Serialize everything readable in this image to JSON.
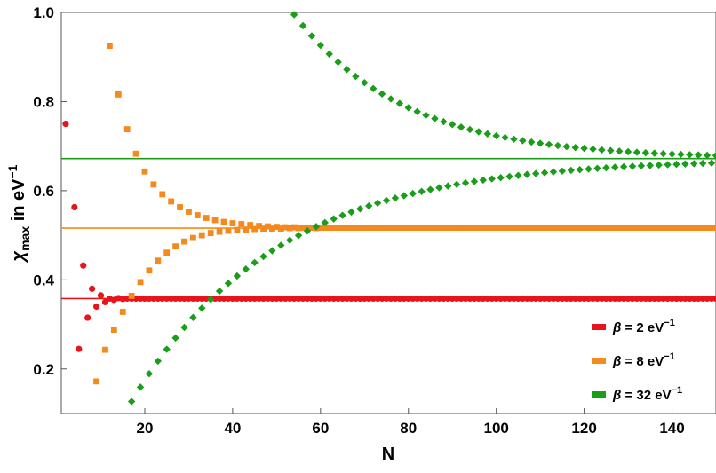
{
  "chart_data": {
    "type": "scatter",
    "xlabel": "N",
    "ylabel": {
      "main": "χ",
      "sub": "max",
      "text": " in eV",
      "sup": "−1"
    },
    "xlim": [
      1,
      150
    ],
    "ylim": [
      0.1,
      1.0
    ],
    "x_ticks": [
      20,
      40,
      60,
      80,
      100,
      120,
      140
    ],
    "y_ticks": [
      0.2,
      0.4,
      0.6,
      0.8,
      1.0
    ],
    "x_tick_labels": [
      "20",
      "40",
      "60",
      "80",
      "100",
      "120",
      "140"
    ],
    "y_tick_labels": [
      "0.2",
      "0.4",
      "0.6",
      "0.8",
      "1.0"
    ],
    "grid": false,
    "legend_position": "bottom-right",
    "series": [
      {
        "name": "β = 2 eV⁻¹",
        "legend": {
          "beta": "β",
          "text": " = 2 eV",
          "sup": "−1"
        },
        "color": "#e8141c",
        "marker": "circle",
        "reference_line": 0.358,
        "decay_points": [
          [
            2,
            0.75
          ],
          [
            4,
            0.563
          ],
          [
            5,
            0.245
          ],
          [
            6,
            0.432
          ],
          [
            7,
            0.315
          ],
          [
            8,
            0.38
          ],
          [
            9,
            0.34
          ],
          [
            10,
            0.365
          ],
          [
            11,
            0.35
          ],
          [
            12,
            0.358
          ],
          [
            13,
            0.355
          ],
          [
            14,
            0.359
          ],
          [
            15,
            0.357
          ]
        ],
        "asymptote": 0.358,
        "converged_range": [
          16,
          150
        ]
      },
      {
        "name": "β = 8 eV⁻¹",
        "legend": {
          "beta": "β",
          "text": " = 8 eV",
          "sup": "−1"
        },
        "color": "#f5891c",
        "marker": "square",
        "reference_line": 0.516,
        "even_points": [
          [
            12,
            0.925
          ],
          [
            14,
            0.816
          ],
          [
            16,
            0.738
          ],
          [
            18,
            0.683
          ],
          [
            20,
            0.643
          ],
          [
            22,
            0.614
          ],
          [
            24,
            0.592
          ],
          [
            26,
            0.576
          ],
          [
            28,
            0.563
          ],
          [
            30,
            0.553
          ],
          [
            32,
            0.545
          ],
          [
            34,
            0.539
          ],
          [
            36,
            0.534
          ],
          [
            38,
            0.53
          ],
          [
            40,
            0.527
          ],
          [
            42,
            0.525
          ],
          [
            44,
            0.523
          ],
          [
            46,
            0.521
          ],
          [
            48,
            0.52
          ],
          [
            50,
            0.519
          ],
          [
            52,
            0.518
          ],
          [
            54,
            0.518
          ],
          [
            56,
            0.517
          ],
          [
            58,
            0.517
          ],
          [
            60,
            0.517
          ]
        ],
        "odd_points": [
          [
            9,
            0.172
          ],
          [
            11,
            0.243
          ],
          [
            13,
            0.288
          ],
          [
            15,
            0.328
          ],
          [
            17,
            0.364
          ],
          [
            19,
            0.395
          ],
          [
            21,
            0.421
          ],
          [
            23,
            0.443
          ],
          [
            25,
            0.461
          ],
          [
            27,
            0.475
          ],
          [
            29,
            0.486
          ],
          [
            31,
            0.494
          ],
          [
            33,
            0.5
          ],
          [
            35,
            0.505
          ],
          [
            37,
            0.508
          ],
          [
            39,
            0.51
          ],
          [
            41,
            0.512
          ],
          [
            43,
            0.513
          ],
          [
            45,
            0.514
          ],
          [
            47,
            0.515
          ],
          [
            49,
            0.515
          ],
          [
            51,
            0.515
          ],
          [
            53,
            0.516
          ],
          [
            55,
            0.516
          ],
          [
            57,
            0.516
          ],
          [
            59,
            0.516
          ]
        ],
        "asymptote": 0.517,
        "converged_range": [
          61,
          150
        ]
      },
      {
        "name": "β = 32 eV⁻¹",
        "legend": {
          "beta": "β",
          "text": " = 32 eV",
          "sup": "−1"
        },
        "color": "#1a9e1a",
        "marker": "diamond",
        "reference_line": 0.672,
        "upper_branch": {
          "x_start": 54,
          "x_end": 150,
          "step": 2,
          "y_start": 0.995,
          "y_end": 0.683,
          "asymptote": 0.672,
          "decay_length": 25
        },
        "lower_branch": {
          "x_start": 17,
          "x_end": 149,
          "step": 2,
          "y_start": 0.127,
          "y_end": 0.66,
          "asymptote": 0.672,
          "decay_length": 33
        }
      }
    ]
  }
}
